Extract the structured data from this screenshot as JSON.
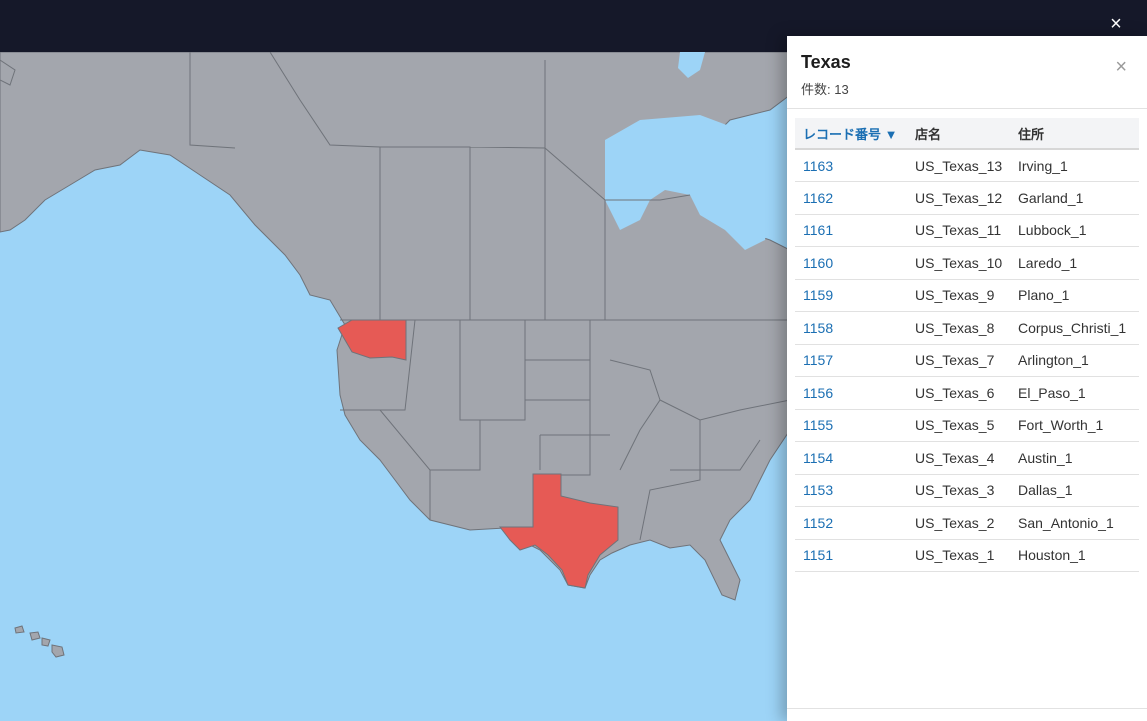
{
  "topbar": {
    "close_icon": "close-icon",
    "close_label": "×"
  },
  "map": {
    "ocean_color": "#9dd4f7",
    "land_color": "#a3a6ad",
    "highlight_color": "#e65a55",
    "highlighted_regions": [
      "Washington",
      "Texas"
    ]
  },
  "panel": {
    "title": "Texas",
    "count_label": "件数: 13",
    "close_label": "×",
    "columns": {
      "record": "レコード番号 ▼",
      "store": "店名",
      "address": "住所"
    },
    "rows": [
      {
        "id": "1163",
        "store": "US_Texas_13",
        "address": "Irving_1"
      },
      {
        "id": "1162",
        "store": "US_Texas_12",
        "address": "Garland_1"
      },
      {
        "id": "1161",
        "store": "US_Texas_11",
        "address": "Lubbock_1"
      },
      {
        "id": "1160",
        "store": "US_Texas_10",
        "address": "Laredo_1"
      },
      {
        "id": "1159",
        "store": "US_Texas_9",
        "address": "Plano_1"
      },
      {
        "id": "1158",
        "store": "US_Texas_8",
        "address": "Corpus_Christi_1"
      },
      {
        "id": "1157",
        "store": "US_Texas_7",
        "address": "Arlington_1"
      },
      {
        "id": "1156",
        "store": "US_Texas_6",
        "address": "El_Paso_1"
      },
      {
        "id": "1155",
        "store": "US_Texas_5",
        "address": "Fort_Worth_1"
      },
      {
        "id": "1154",
        "store": "US_Texas_4",
        "address": "Austin_1"
      },
      {
        "id": "1153",
        "store": "US_Texas_3",
        "address": "Dallas_1"
      },
      {
        "id": "1152",
        "store": "US_Texas_2",
        "address": "San_Antonio_1"
      },
      {
        "id": "1151",
        "store": "US_Texas_1",
        "address": "Houston_1"
      }
    ]
  }
}
